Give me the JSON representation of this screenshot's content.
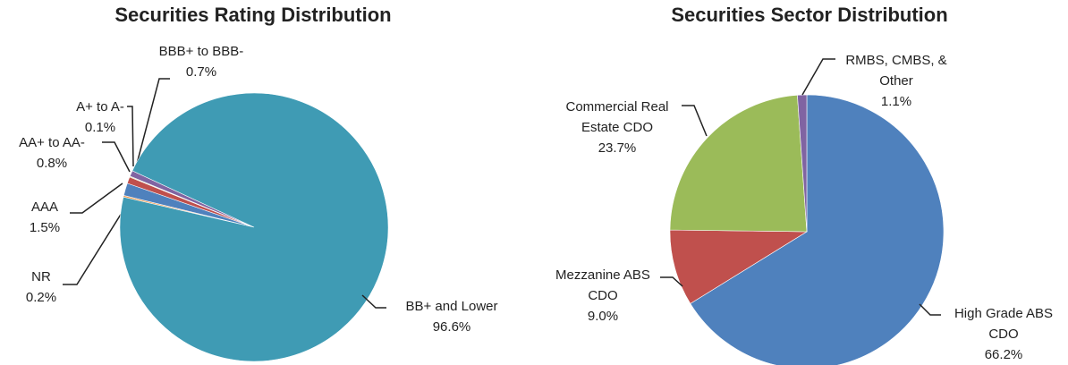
{
  "chart_data": [
    {
      "type": "pie",
      "title": "Securities Rating Distribution",
      "categories": [
        "NR",
        "AAA",
        "AA+ to AA-",
        "A+ to A-",
        "BBB+ to BBB-",
        "BB+ and Lower"
      ],
      "values": [
        0.2,
        1.5,
        0.8,
        0.1,
        0.7,
        96.6
      ],
      "value_labels": [
        "0.2%",
        "1.5%",
        "0.8%",
        "0.1%",
        "0.7%",
        "96.6%"
      ],
      "colors": [
        "#F79646",
        "#4F81BD",
        "#C0504D",
        "#9BBB59",
        "#8064A2",
        "#3F9BB4"
      ]
    },
    {
      "type": "pie",
      "title": "Securities Sector Distribution",
      "categories": [
        "High Grade ABS CDO",
        "Mezzanine ABS CDO",
        "Commercial Real Estate CDO",
        "RMBS, CMBS, & Other"
      ],
      "values": [
        66.2,
        9.0,
        23.7,
        1.1
      ],
      "value_labels": [
        "66.2%",
        "9.0%",
        "23.7%",
        "1.1%"
      ],
      "colors": [
        "#4F81BD",
        "#C0504D",
        "#9BBB59",
        "#8064A2"
      ]
    }
  ]
}
